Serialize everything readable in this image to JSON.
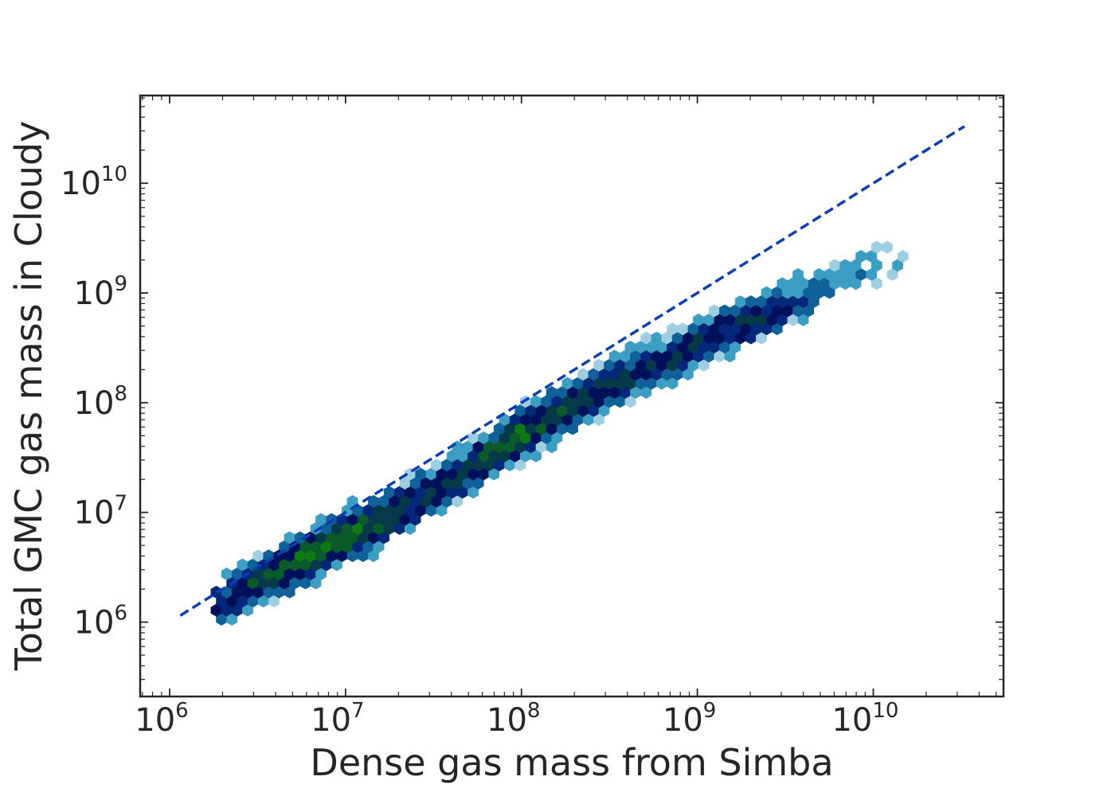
{
  "chart_data": {
    "type": "heatmap",
    "subtype": "hexbin",
    "title": "",
    "xlabel": "Dense gas mass from Simba",
    "ylabel": "Total GMC gas mass in Cloudy",
    "xscale": "log",
    "yscale": "log",
    "xlim": [
      680000.0,
      55000000000.0
    ],
    "ylim": [
      210000.0,
      63000000000.0
    ],
    "xticks": [
      {
        "value": 1000000.0,
        "base": "10",
        "exp": "6"
      },
      {
        "value": 10000000.0,
        "base": "10",
        "exp": "7"
      },
      {
        "value": 100000000.0,
        "base": "10",
        "exp": "8"
      },
      {
        "value": 1000000000.0,
        "base": "10",
        "exp": "9"
      },
      {
        "value": 10000000000.0,
        "base": "10",
        "exp": "10"
      }
    ],
    "yticks": [
      {
        "value": 1000000.0,
        "base": "10",
        "exp": "6"
      },
      {
        "value": 10000000.0,
        "base": "10",
        "exp": "7"
      },
      {
        "value": 100000000.0,
        "base": "10",
        "exp": "8"
      },
      {
        "value": 1000000000.0,
        "base": "10",
        "exp": "9"
      },
      {
        "value": 10000000000.0,
        "base": "10",
        "exp": "10"
      }
    ],
    "reference_line": {
      "style": "dashed",
      "color": "#0a3fb5",
      "x": [
        1150000.0,
        33000000000.0
      ],
      "y": [
        1150000.0,
        33000000000.0
      ]
    },
    "colormap": [
      "#9ecfe0",
      "#3d9ec4",
      "#10619a",
      "#05287a",
      "#00105a",
      "#063a48",
      "#0a5a2a",
      "#0e7a14"
    ],
    "ridge": [
      {
        "x": 2000000.0,
        "y": 1450000.0,
        "count": 5
      },
      {
        "x": 3000000.0,
        "y": 2200000.0,
        "count": 7
      },
      {
        "x": 5000000.0,
        "y": 3400000.0,
        "count": 8
      },
      {
        "x": 8000000.0,
        "y": 5000000.0,
        "count": 8
      },
      {
        "x": 15000000.0,
        "y": 8000000.0,
        "count": 7
      },
      {
        "x": 30000000.0,
        "y": 15000000.0,
        "count": 6
      },
      {
        "x": 60000000.0,
        "y": 30000000.0,
        "count": 7
      },
      {
        "x": 100000000.0,
        "y": 52000000.0,
        "count": 8
      },
      {
        "x": 200000000.0,
        "y": 100000000.0,
        "count": 7
      },
      {
        "x": 400000000.0,
        "y": 170000000.0,
        "count": 6
      },
      {
        "x": 700000000.0,
        "y": 250000000.0,
        "count": 6
      },
      {
        "x": 1200000000.0,
        "y": 400000000.0,
        "count": 6
      },
      {
        "x": 2000000000.0,
        "y": 550000000.0,
        "count": 6
      },
      {
        "x": 3000000000.0,
        "y": 750000000.0,
        "count": 5
      },
      {
        "x": 6000000000.0,
        "y": 1300000000.0,
        "count": 3
      },
      {
        "x": 10000000000.0,
        "y": 1800000000.0,
        "count": 2
      },
      {
        "x": 18000000000.0,
        "y": 2600000000.0,
        "count": 1
      }
    ]
  }
}
